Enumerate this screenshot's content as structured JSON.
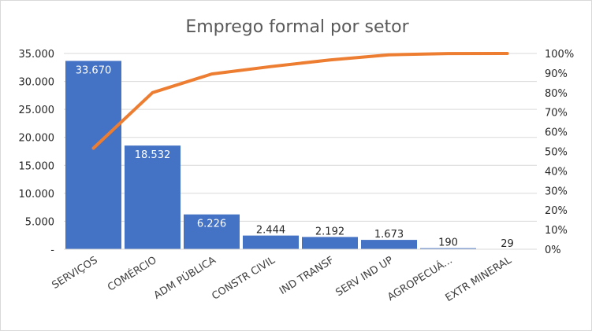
{
  "chart_data": {
    "type": "bar",
    "title": "Emprego formal por setor",
    "categories": [
      "SERVIÇOS",
      "COMÉRCIO",
      "ADM PÚBLICA",
      "CONSTR CIVIL",
      "IND TRANSF",
      "SERV IND UP",
      "AGROPECUÁ...",
      "EXTR MINERAL"
    ],
    "series": [
      {
        "type": "bar",
        "values": [
          33670,
          18532,
          6226,
          2444,
          2192,
          1673,
          190,
          29
        ],
        "color": "#4472c4"
      },
      {
        "type": "line",
        "axis": "secondary",
        "values": [
          0.516,
          0.8,
          0.895,
          0.933,
          0.967,
          0.993,
          0.9996,
          1.0
        ],
        "color": "#ed7d31"
      }
    ],
    "data_labels": [
      "33.670",
      "18.532",
      "6.226",
      "2.444",
      "2.192",
      "1.673",
      "190",
      "29"
    ],
    "y_left": {
      "lim": [
        0,
        35000
      ],
      "ticks": [
        0,
        5000,
        10000,
        15000,
        20000,
        25000,
        30000,
        35000
      ],
      "tick_labels": [
        "-",
        "5.000",
        "10.000",
        "15.000",
        "20.000",
        "25.000",
        "30.000",
        "35.000"
      ]
    },
    "y_right": {
      "lim": [
        0,
        1
      ],
      "ticks": [
        0,
        0.1,
        0.2,
        0.3,
        0.4,
        0.5,
        0.6,
        0.7,
        0.8,
        0.9,
        1.0
      ],
      "tick_labels": [
        "0%",
        "10%",
        "20%",
        "30%",
        "40%",
        "50%",
        "60%",
        "70%",
        "80%",
        "90%",
        "100%"
      ]
    },
    "grid": true,
    "legend": "none"
  }
}
